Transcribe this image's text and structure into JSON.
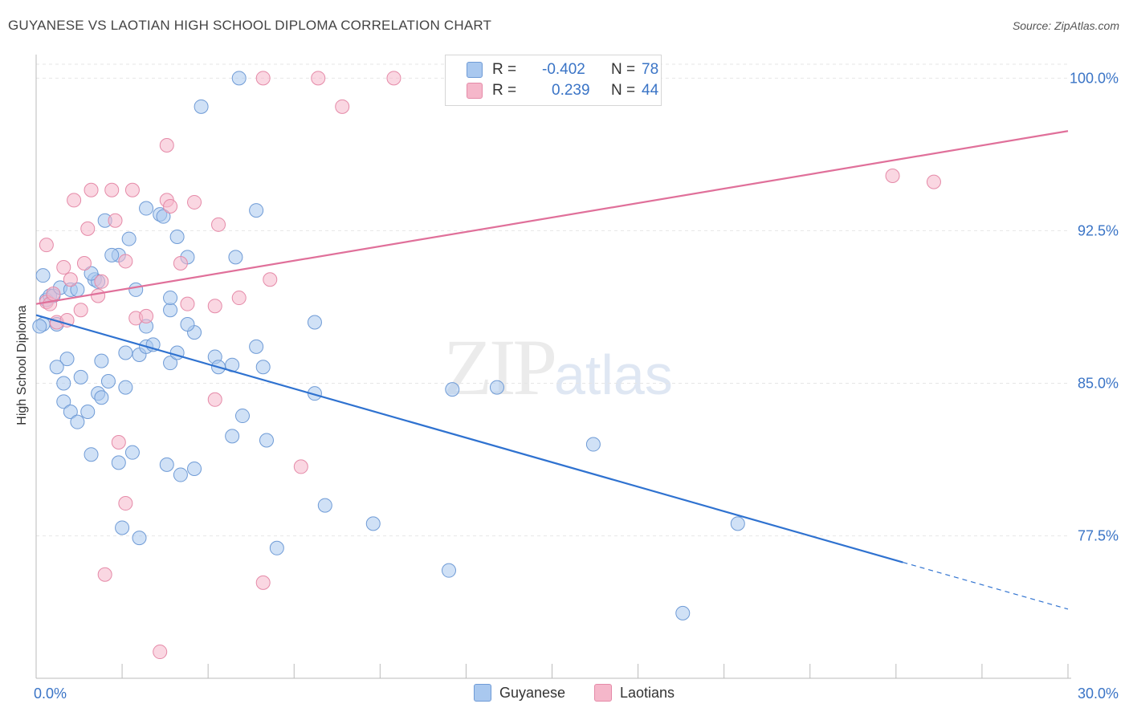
{
  "header": {
    "title": "GUYANESE VS LAOTIAN HIGH SCHOOL DIPLOMA CORRELATION CHART",
    "source": "Source: ZipAtlas.com"
  },
  "watermark": {
    "zip": "ZIP",
    "atlas": "atlas"
  },
  "legend_top": {
    "rows": [
      {
        "r_label": "R =",
        "r_value": "-0.402",
        "n_label": "N =",
        "n_value": "78",
        "color": "#a9c8ef"
      },
      {
        "r_label": "R =",
        "r_value": "0.239",
        "n_label": "N =",
        "n_value": "44",
        "color": "#f5b7ca"
      }
    ]
  },
  "legend_bottom": [
    {
      "label": "Guyanese",
      "color": "#a9c8ef"
    },
    {
      "label": "Laotians",
      "color": "#f5b7ca"
    }
  ],
  "colors": {
    "blue_point": "#a9c8ef",
    "blue_edge": "#6f9bd6",
    "blue_line": "#2f72d0",
    "pink_point": "#f5b7ca",
    "pink_edge": "#e58aa8",
    "pink_line": "#e0709a",
    "tick_text": "#3a74c6",
    "grid": "#e6e6e6"
  },
  "chart_data": {
    "type": "scatter",
    "title": "GUYANESE VS LAOTIAN HIGH SCHOOL DIPLOMA CORRELATION CHART",
    "xlabel": "",
    "ylabel": "High School Diploma",
    "xlim": [
      0,
      30
    ],
    "ylim": [
      70.5,
      101
    ],
    "x_tick_labels": [
      {
        "value": 0,
        "label": "0.0%"
      },
      {
        "value": 30,
        "label": "30.0%"
      }
    ],
    "y_tick_labels": [
      {
        "value": 100,
        "label": "100.0%"
      },
      {
        "value": 92.5,
        "label": "92.5%"
      },
      {
        "value": 85,
        "label": "85.0%"
      },
      {
        "value": 77.5,
        "label": "77.5%"
      }
    ],
    "grid": true,
    "legend_position": "top-center",
    "series": [
      {
        "name": "Guyanese",
        "color": "#a9c8ef",
        "points": [
          [
            0.2,
            90.3
          ],
          [
            0.3,
            89.1
          ],
          [
            0.4,
            89.3
          ],
          [
            0.2,
            87.9
          ],
          [
            0.5,
            89.3
          ],
          [
            0.6,
            87.9
          ],
          [
            0.7,
            89.7
          ],
          [
            1.0,
            89.6
          ],
          [
            1.2,
            89.6
          ],
          [
            1.7,
            90.1
          ],
          [
            1.8,
            90.0
          ],
          [
            1.6,
            90.4
          ],
          [
            0.9,
            86.2
          ],
          [
            0.6,
            85.8
          ],
          [
            0.8,
            85.0
          ],
          [
            1.3,
            85.3
          ],
          [
            1.9,
            86.1
          ],
          [
            0.8,
            84.1
          ],
          [
            1.0,
            83.6
          ],
          [
            1.2,
            83.1
          ],
          [
            1.5,
            83.6
          ],
          [
            1.8,
            84.5
          ],
          [
            1.9,
            84.3
          ],
          [
            2.1,
            85.1
          ],
          [
            2.6,
            84.8
          ],
          [
            2.6,
            86.5
          ],
          [
            3.0,
            86.4
          ],
          [
            3.2,
            86.8
          ],
          [
            3.4,
            86.9
          ],
          [
            3.2,
            87.8
          ],
          [
            3.9,
            86.0
          ],
          [
            4.1,
            86.5
          ],
          [
            4.6,
            87.5
          ],
          [
            5.2,
            86.3
          ],
          [
            5.3,
            85.8
          ],
          [
            5.7,
            85.9
          ],
          [
            6.4,
            86.8
          ],
          [
            6.6,
            85.8
          ],
          [
            4.4,
            87.9
          ],
          [
            3.9,
            88.6
          ],
          [
            3.9,
            89.2
          ],
          [
            2.9,
            89.6
          ],
          [
            2.4,
            91.3
          ],
          [
            2.2,
            91.3
          ],
          [
            2.0,
            93.0
          ],
          [
            2.7,
            92.1
          ],
          [
            3.2,
            93.6
          ],
          [
            3.6,
            93.3
          ],
          [
            3.7,
            93.2
          ],
          [
            4.1,
            92.2
          ],
          [
            4.4,
            91.2
          ],
          [
            5.8,
            91.2
          ],
          [
            6.4,
            93.5
          ],
          [
            4.8,
            98.6
          ],
          [
            5.9,
            100.0
          ],
          [
            8.1,
            88.0
          ],
          [
            8.1,
            84.5
          ],
          [
            12.1,
            84.7
          ],
          [
            13.4,
            84.8
          ],
          [
            1.6,
            81.5
          ],
          [
            2.4,
            81.1
          ],
          [
            2.8,
            81.6
          ],
          [
            3.8,
            81.0
          ],
          [
            4.2,
            80.5
          ],
          [
            4.6,
            80.8
          ],
          [
            5.7,
            82.4
          ],
          [
            6.0,
            83.4
          ],
          [
            6.7,
            82.2
          ],
          [
            8.4,
            79.0
          ],
          [
            9.8,
            78.1
          ],
          [
            2.5,
            77.9
          ],
          [
            3.0,
            77.4
          ],
          [
            7.0,
            76.9
          ],
          [
            12.0,
            75.8
          ],
          [
            16.2,
            82.0
          ],
          [
            20.4,
            78.1
          ],
          [
            18.8,
            73.7
          ],
          [
            0.1,
            87.8
          ]
        ],
        "trendline": {
          "x": [
            0,
            25.2
          ],
          "y": [
            88.35,
            76.2
          ],
          "dashed_extension": {
            "x": [
              25.2,
              30
            ],
            "y": [
              76.2,
              73.9
            ]
          }
        }
      },
      {
        "name": "Laotians",
        "color": "#f5b7ca",
        "points": [
          [
            0.3,
            91.8
          ],
          [
            0.3,
            89.0
          ],
          [
            0.4,
            88.9
          ],
          [
            0.5,
            89.4
          ],
          [
            0.8,
            90.7
          ],
          [
            1.0,
            90.1
          ],
          [
            0.6,
            88.0
          ],
          [
            0.9,
            88.1
          ],
          [
            1.3,
            88.6
          ],
          [
            1.4,
            90.9
          ],
          [
            1.5,
            92.6
          ],
          [
            1.6,
            94.5
          ],
          [
            1.1,
            94.0
          ],
          [
            1.8,
            89.3
          ],
          [
            1.9,
            90.0
          ],
          [
            2.2,
            94.5
          ],
          [
            2.3,
            93.0
          ],
          [
            2.6,
            91.0
          ],
          [
            2.8,
            94.5
          ],
          [
            2.9,
            88.2
          ],
          [
            3.2,
            88.3
          ],
          [
            3.8,
            94.0
          ],
          [
            3.9,
            93.7
          ],
          [
            3.8,
            96.7
          ],
          [
            4.2,
            90.9
          ],
          [
            4.4,
            88.9
          ],
          [
            4.6,
            93.9
          ],
          [
            5.2,
            88.8
          ],
          [
            5.3,
            92.8
          ],
          [
            5.9,
            89.2
          ],
          [
            6.8,
            90.1
          ],
          [
            6.6,
            100.0
          ],
          [
            8.2,
            100.0
          ],
          [
            8.9,
            98.6
          ],
          [
            10.4,
            100.0
          ],
          [
            5.2,
            84.2
          ],
          [
            2.4,
            82.1
          ],
          [
            2.6,
            79.1
          ],
          [
            7.7,
            80.9
          ],
          [
            2.0,
            75.6
          ],
          [
            6.6,
            75.2
          ],
          [
            3.6,
            71.8
          ],
          [
            24.9,
            95.2
          ],
          [
            26.1,
            94.9
          ]
        ],
        "trendline": {
          "x": [
            0,
            30
          ],
          "y": [
            88.9,
            97.4
          ]
        }
      }
    ]
  }
}
